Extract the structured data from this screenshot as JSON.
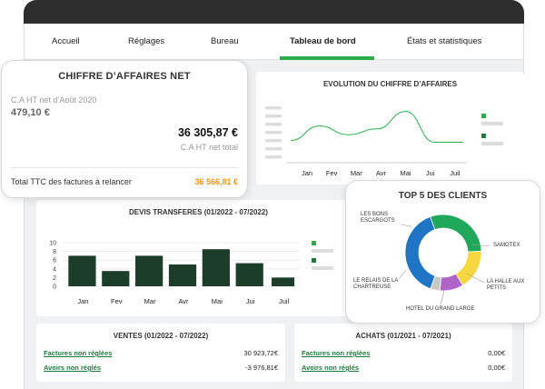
{
  "nav": {
    "tabs": [
      {
        "label": "Accueil",
        "active": false
      },
      {
        "label": "Réglages",
        "active": false
      },
      {
        "label": "Bureau",
        "active": false
      },
      {
        "label": "Tableau de bord",
        "active": true
      },
      {
        "label": "États et statistiques",
        "active": false
      }
    ]
  },
  "ca_card": {
    "title": "CHIFFRE D’AFFAIRES NET",
    "previous_label": "C.A HT net d’Août 2020",
    "previous_value": "479,10 €",
    "main_value": "36 305,87 €",
    "main_label": "C.A HT net total",
    "relance_label": "Total TTC des factures à relancer",
    "relance_value": "36 566,81 €",
    "accent_color": "#f0941e"
  },
  "chart_data": [
    {
      "type": "line",
      "title": "EVOLUTION DU CHIFFRE D’AFFAIRES",
      "categories": [
        "Jan",
        "Fev",
        "Mar",
        "Avr",
        "Mai",
        "Jui",
        "Juil"
      ],
      "series": [
        {
          "values": [
            0.35,
            0.6,
            0.45,
            0.55,
            0.85,
            0.32,
            0.32
          ],
          "color": "#2bae4a"
        }
      ],
      "legend_position": "right",
      "legend_colors": [
        "#2bae4a",
        "#1e7b3c"
      ]
    },
    {
      "type": "bar",
      "title": "DEVIS TRANSFERES (01/2022 - 07/2022)",
      "categories": [
        "Jan",
        "Fev",
        "Mar",
        "Avr",
        "Mai",
        "Jui",
        "Juil"
      ],
      "values": [
        7,
        3.5,
        7,
        5,
        8.5,
        5.3,
        2
      ],
      "yticks": [
        "10",
        "8",
        "6",
        "4",
        "2",
        "0"
      ],
      "ylim": [
        0,
        10
      ],
      "bar_color": "#1b3d2a",
      "legend_position": "right",
      "legend_colors": [
        "#2bae4a",
        "#1e7b3c"
      ]
    },
    {
      "type": "pie",
      "title": "TOP 5 DES CLIENTS",
      "slices": [
        {
          "label": "LES BONS ESCARGOTS",
          "value": 30,
          "color": "#1fa85a"
        },
        {
          "label": "SAMOTEX",
          "value": 17,
          "color": "#f7d740"
        },
        {
          "label": "LA HALLE AUX PETITS",
          "value": 10,
          "color": "#b064c8"
        },
        {
          "label": "HOTEL DU GRAND LARGE",
          "value": 4,
          "color": "#c8c8c8"
        },
        {
          "label": "LE RELAIS DE LA CHARTREUSE",
          "value": 39,
          "color": "#1f74c4"
        }
      ]
    }
  ],
  "ventes": {
    "title": "VENTES (01/2022 - 07/2022)",
    "rows": [
      {
        "label": "Factures non réglées",
        "value": "30 923,72€"
      },
      {
        "label": "Avoirs non réglés",
        "value": "-3 976,81€"
      }
    ]
  },
  "achats": {
    "title": "ACHATS (01/2021 - 07/2021)",
    "rows": [
      {
        "label": "Factures non réglées",
        "value": "0,00€"
      },
      {
        "label": "Avoirs non réglés",
        "value": "0,00€"
      }
    ]
  }
}
